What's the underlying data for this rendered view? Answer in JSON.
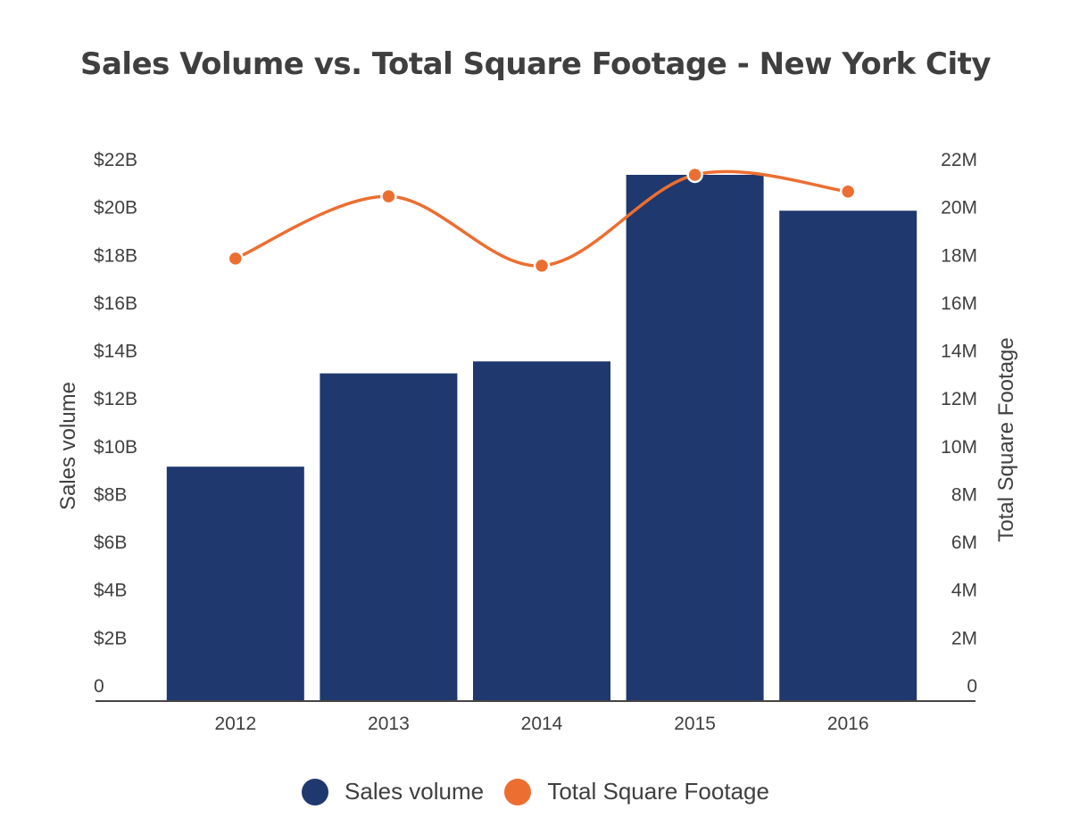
{
  "chart_data": {
    "type": "bar",
    "title": "Sales Volume vs. Total Square Footage - New York City",
    "categories": [
      "2012",
      "2013",
      "2014",
      "2015",
      "2016"
    ],
    "series": [
      {
        "name": "Sales volume",
        "type": "bar",
        "axis": "left",
        "unit": "$B",
        "color": "#1f386e",
        "values": [
          9.8,
          13.7,
          14.2,
          22.0,
          20.5
        ]
      },
      {
        "name": "Total Square Footage",
        "type": "line",
        "axis": "right",
        "unit": "M",
        "color": "#ec6e31",
        "values": [
          18.5,
          21.1,
          18.2,
          22.0,
          21.3
        ]
      }
    ],
    "y_left": {
      "label": "Sales volume",
      "ylim": [
        0,
        22
      ],
      "ticks": [
        0,
        2,
        4,
        6,
        8,
        10,
        12,
        14,
        16,
        18,
        20,
        22
      ],
      "tick_labels": [
        "0",
        "$2B",
        "$4B",
        "$6B",
        "$8B",
        "$10B",
        "$12B",
        "$14B",
        "$16B",
        "$18B",
        "$20B",
        "$22B"
      ]
    },
    "y_right": {
      "label": "Total Square Footage",
      "ylim": [
        0,
        22
      ],
      "ticks": [
        0,
        2,
        4,
        6,
        8,
        10,
        12,
        14,
        16,
        18,
        20,
        22
      ],
      "tick_labels": [
        "0",
        "2M",
        "4M",
        "6M",
        "8M",
        "10M",
        "12M",
        "14M",
        "16M",
        "18M",
        "20M",
        "22M"
      ]
    },
    "grid": false,
    "legend_position": "bottom-center"
  },
  "legend": {
    "items": [
      {
        "label": "Sales volume",
        "color": "#1f386e"
      },
      {
        "label": "Total Square Footage",
        "color": "#ec6e31"
      }
    ]
  }
}
